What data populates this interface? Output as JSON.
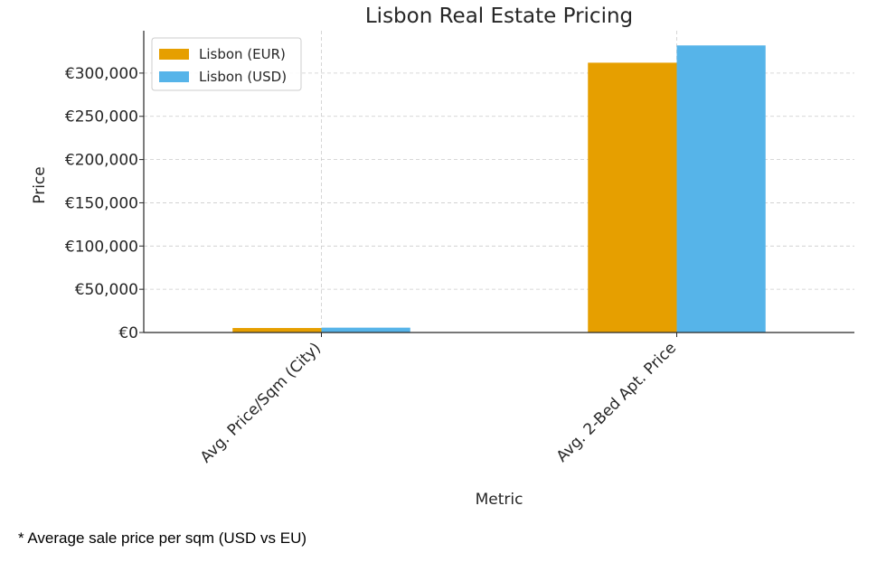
{
  "chart_data": {
    "type": "bar",
    "title": "Lisbon Real Estate Pricing",
    "xlabel": "Metric",
    "ylabel": "Price",
    "categories": [
      "Avg. Price/Sqm (City)",
      "Avg. 2-Bed Apt. Price"
    ],
    "series": [
      {
        "name": "Lisbon (EUR)",
        "color": "#E69F00",
        "values": [
          5200,
          312000
        ]
      },
      {
        "name": "Lisbon (USD)",
        "color": "#56B4E9",
        "values": [
          5600,
          332000
        ]
      }
    ],
    "ylim": [
      0,
      349000
    ],
    "yticks": [
      0,
      50000,
      100000,
      150000,
      200000,
      250000,
      300000
    ],
    "ytick_labels": [
      "€0",
      "€50,000",
      "€100,000",
      "€150,000",
      "€200,000",
      "€250,000",
      "€300,000"
    ],
    "grid": true,
    "legend_position": "top-left"
  },
  "footnote": "* Average sale price per sqm (USD vs EU)"
}
